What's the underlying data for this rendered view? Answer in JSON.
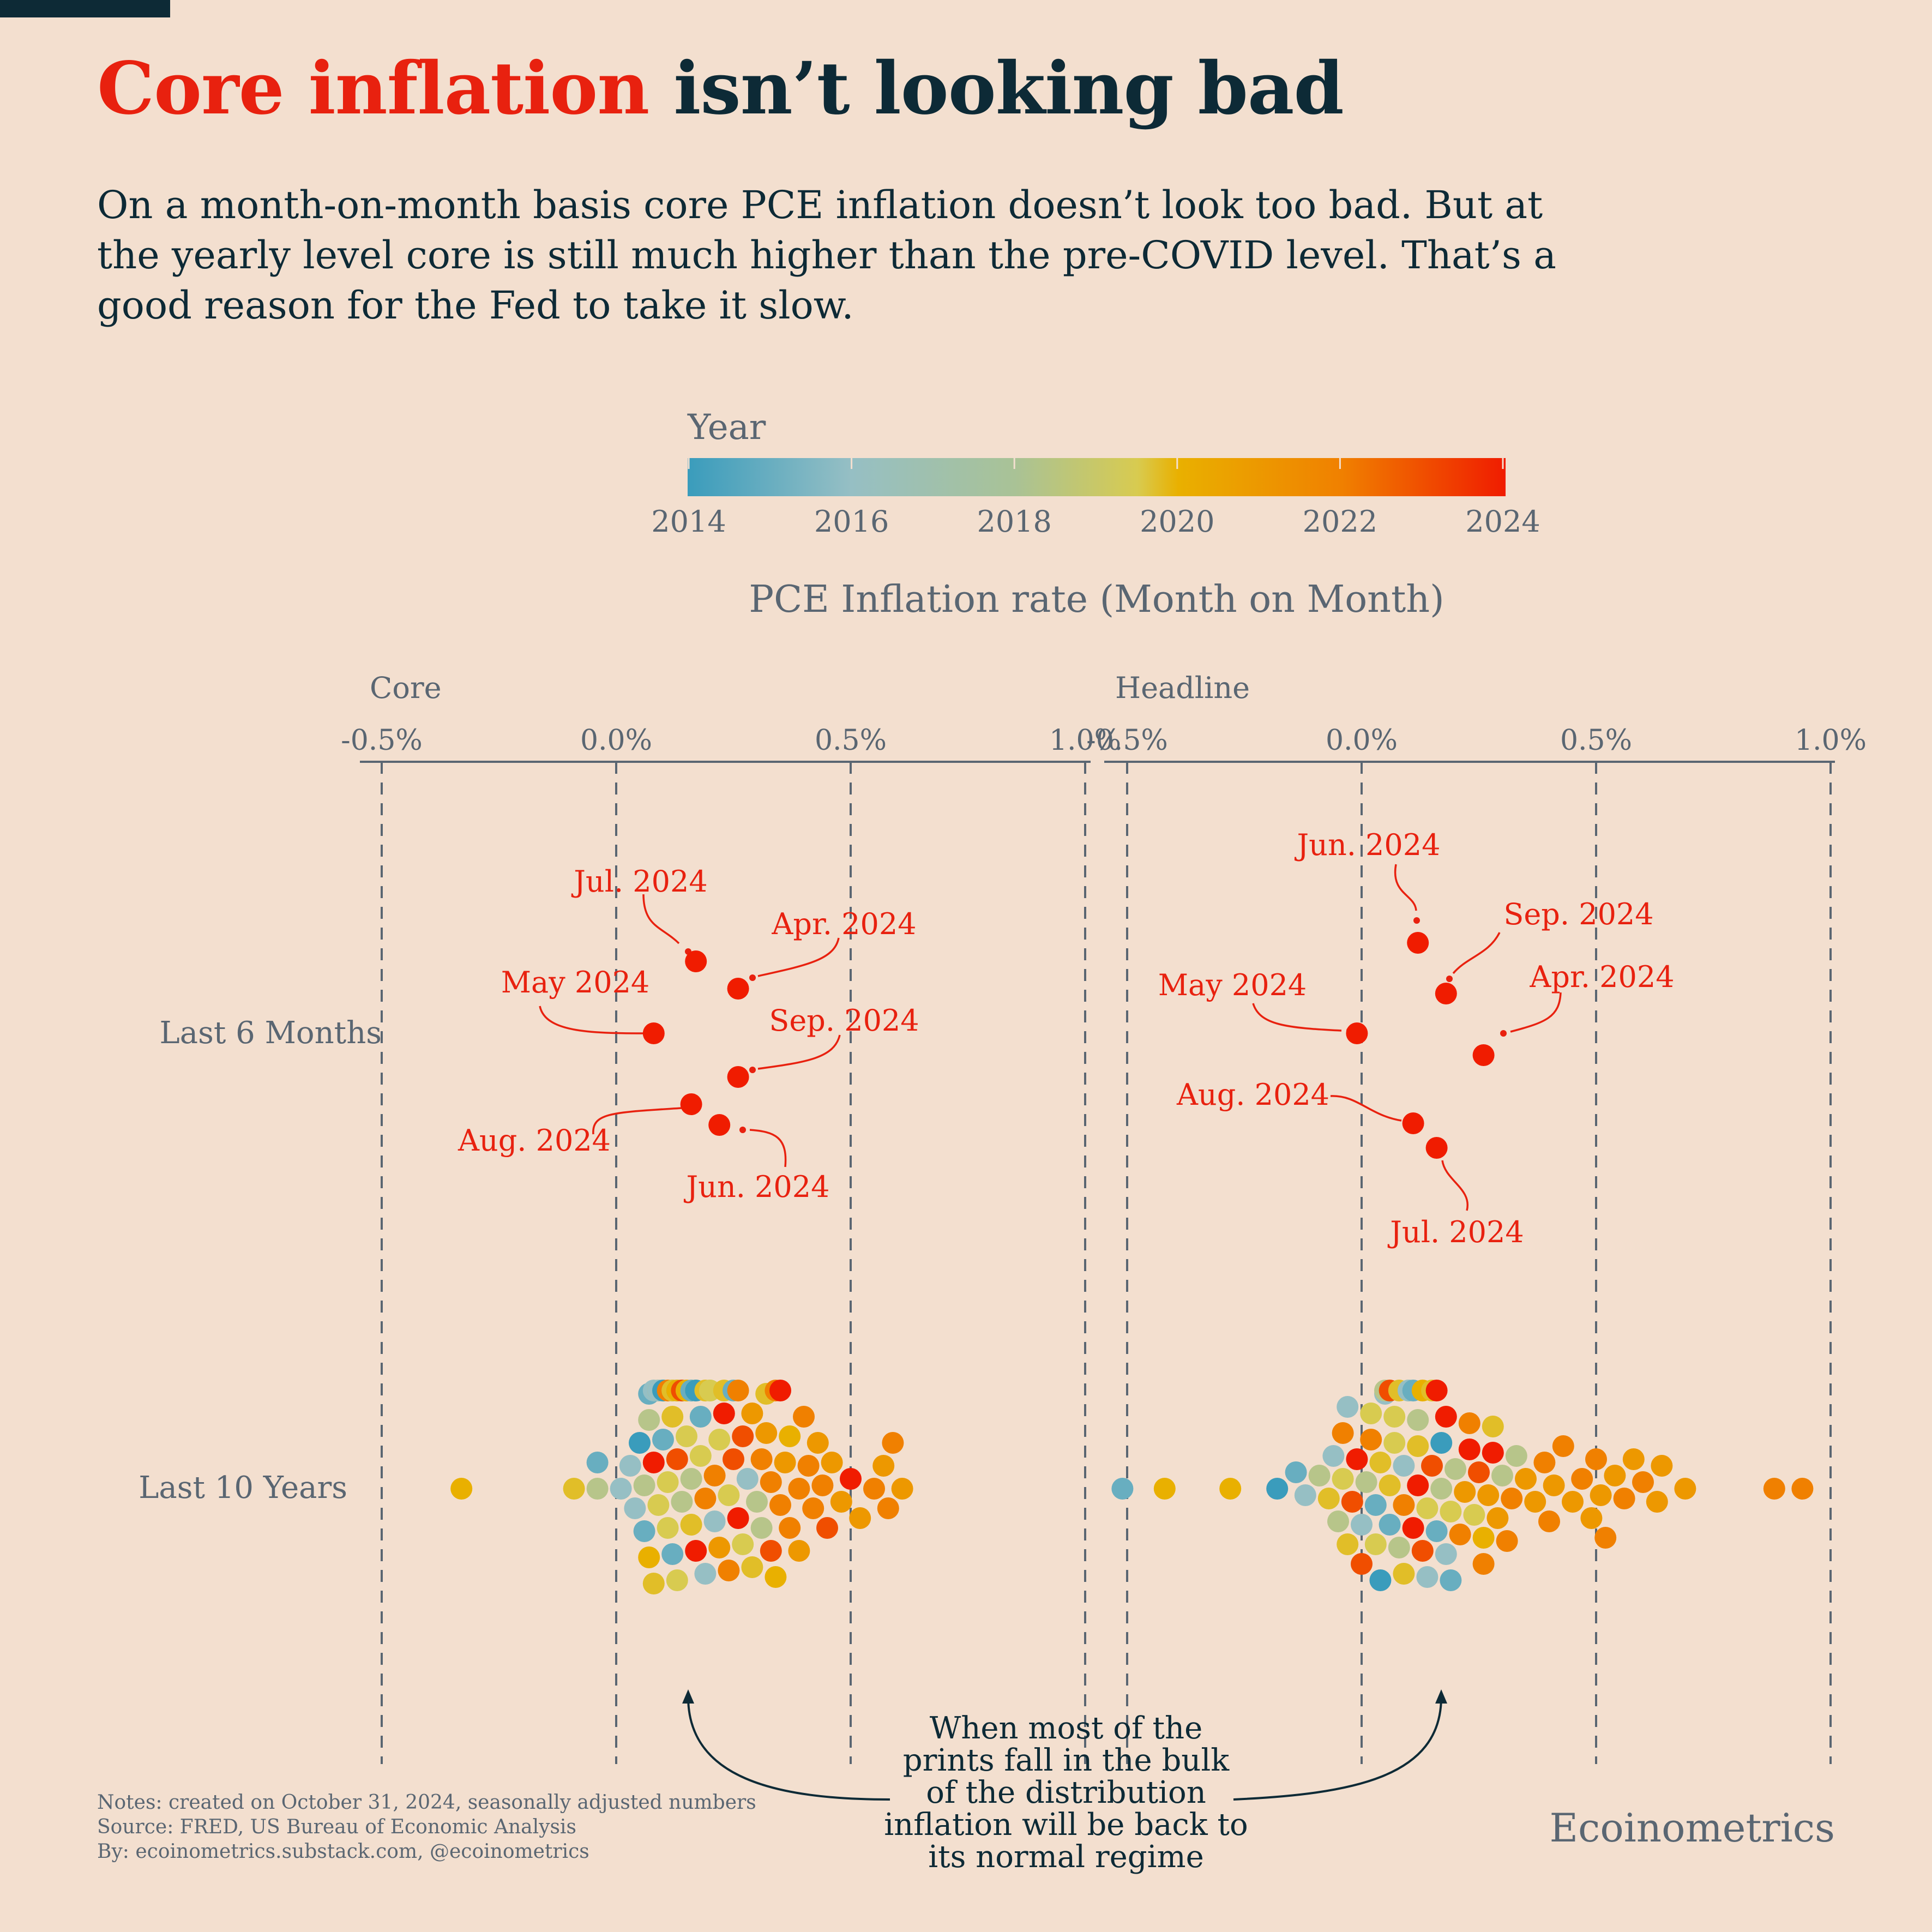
{
  "title": {
    "accent": "Core inflation",
    "rest": " isn’t looking bad"
  },
  "subtitle": "On a month-on-month basis core PCE inflation doesn’t look too bad. But at the yearly level core is still much higher than the pre-COVID level. That’s a good reason for the Fed to take it slow.",
  "notes": {
    "line1": "Notes: created on October 31, 2024, seasonally adjusted numbers",
    "line2": "Source: FRED, US Bureau of Economic Analysis",
    "line3": "By: ecoinometrics.substack.com, @ecoinometrics"
  },
  "brand": "Ecoinometrics",
  "callout": "When most of the prints fall in the bulk of the distribution inflation will be back to its normal regime",
  "colors": {
    "background": "#f3dfcf",
    "dark": "#0d2a36",
    "accent": "#e8210f",
    "gray": "#5a6672",
    "scale": [
      "#3a9cbc",
      "#96bfc4",
      "#d8cb50",
      "#e9b000",
      "#f08000",
      "#f01c00"
    ]
  },
  "chart_data": {
    "type": "scatter",
    "subtype": "beeswarm",
    "title": "PCE Inflation rate (Month on Month)",
    "legend": {
      "title": "Year",
      "min": 2014,
      "max": 2024,
      "ticks": [
        "2014",
        "2016",
        "2018",
        "2020",
        "2022",
        "2024"
      ]
    },
    "xlim": [
      -0.5,
      1.0
    ],
    "tick_labels": [
      "-0.5%",
      "0.0%",
      "0.5%",
      "1.0%"
    ],
    "rows": [
      "Last 6 Months",
      "Last 10 Years"
    ],
    "panels": [
      {
        "name": "Core",
        "recent": [
          {
            "label": "Jul. 2024",
            "value": 0.17
          },
          {
            "label": "Apr. 2024",
            "value": 0.26
          },
          {
            "label": "May 2024",
            "value": 0.08
          },
          {
            "label": "Sep. 2024",
            "value": 0.26
          },
          {
            "label": "Aug. 2024",
            "value": 0.16
          },
          {
            "label": "Jun. 2024",
            "value": 0.22
          }
        ],
        "history": [
          [
            -0.33,
            2020
          ],
          [
            -0.09,
            2019
          ],
          [
            -0.04,
            2017
          ],
          [
            -0.04,
            2015
          ],
          [
            0.01,
            2016
          ],
          [
            0.03,
            2016
          ],
          [
            0.04,
            2016
          ],
          [
            0.05,
            2014
          ],
          [
            0.06,
            2017
          ],
          [
            0.06,
            2015
          ],
          [
            0.07,
            2017
          ],
          [
            0.07,
            2020
          ],
          [
            0.07,
            2015
          ],
          [
            0.08,
            2024
          ],
          [
            0.08,
            2019
          ],
          [
            0.08,
            2016
          ],
          [
            0.09,
            2018
          ],
          [
            0.09,
            2019
          ],
          [
            0.09,
            2016
          ],
          [
            0.1,
            2015
          ],
          [
            0.1,
            2017
          ],
          [
            0.1,
            2014
          ],
          [
            0.11,
            2018
          ],
          [
            0.11,
            2018
          ],
          [
            0.11,
            2022
          ],
          [
            0.12,
            2015
          ],
          [
            0.12,
            2019
          ],
          [
            0.12,
            2016
          ],
          [
            0.12,
            2019
          ],
          [
            0.13,
            2023
          ],
          [
            0.13,
            2018
          ],
          [
            0.13,
            2015
          ],
          [
            0.13,
            2020
          ],
          [
            0.14,
            2017
          ],
          [
            0.14,
            2015
          ],
          [
            0.14,
            2023
          ],
          [
            0.15,
            2018
          ],
          [
            0.15,
            2016
          ],
          [
            0.15,
            2020
          ],
          [
            0.16,
            2017
          ],
          [
            0.16,
            2019
          ],
          [
            0.16,
            2015
          ],
          [
            0.17,
            2024
          ],
          [
            0.17,
            2018
          ],
          [
            0.17,
            2014
          ],
          [
            0.18,
            2018
          ],
          [
            0.18,
            2015
          ],
          [
            0.19,
            2022
          ],
          [
            0.19,
            2016
          ],
          [
            0.19,
            2019
          ],
          [
            0.2,
            2017
          ],
          [
            0.2,
            2018
          ],
          [
            0.21,
            2022
          ],
          [
            0.21,
            2016
          ],
          [
            0.22,
            2018
          ],
          [
            0.22,
            2021
          ],
          [
            0.23,
            2024
          ],
          [
            0.23,
            2019
          ],
          [
            0.24,
            2018
          ],
          [
            0.24,
            2022
          ],
          [
            0.25,
            2023
          ],
          [
            0.25,
            2015
          ],
          [
            0.26,
            2024
          ],
          [
            0.26,
            2022
          ],
          [
            0.27,
            2023
          ],
          [
            0.27,
            2018
          ],
          [
            0.28,
            2016
          ],
          [
            0.29,
            2021
          ],
          [
            0.29,
            2019
          ],
          [
            0.3,
            2017
          ],
          [
            0.31,
            2022
          ],
          [
            0.31,
            2017
          ],
          [
            0.32,
            2021
          ],
          [
            0.32,
            2019
          ],
          [
            0.33,
            2022
          ],
          [
            0.33,
            2023
          ],
          [
            0.34,
            2020
          ],
          [
            0.34,
            2022
          ],
          [
            0.35,
            2022
          ],
          [
            0.35,
            2024
          ],
          [
            0.36,
            2021
          ],
          [
            0.37,
            2022
          ],
          [
            0.37,
            2020
          ],
          [
            0.39,
            2022
          ],
          [
            0.39,
            2021
          ],
          [
            0.4,
            2022
          ],
          [
            0.41,
            2022
          ],
          [
            0.42,
            2022
          ],
          [
            0.43,
            2021
          ],
          [
            0.44,
            2022
          ],
          [
            0.45,
            2023
          ],
          [
            0.46,
            2021
          ],
          [
            0.48,
            2021
          ],
          [
            0.5,
            2024
          ],
          [
            0.52,
            2021
          ],
          [
            0.55,
            2022
          ],
          [
            0.57,
            2021
          ],
          [
            0.58,
            2022
          ],
          [
            0.59,
            2022
          ],
          [
            0.61,
            2021
          ]
        ]
      },
      {
        "name": "Headline",
        "recent": [
          {
            "label": "Jun. 2024",
            "value": 0.12
          },
          {
            "label": "Sep. 2024",
            "value": 0.18
          },
          {
            "label": "May 2024",
            "value": -0.01
          },
          {
            "label": "Apr. 2024",
            "value": 0.26
          },
          {
            "label": "Aug. 2024",
            "value": 0.11
          },
          {
            "label": "Jul. 2024",
            "value": 0.16
          }
        ],
        "history": [
          [
            -0.51,
            2015
          ],
          [
            -0.42,
            2020
          ],
          [
            -0.28,
            2020
          ],
          [
            -0.18,
            2014
          ],
          [
            -0.14,
            2015
          ],
          [
            -0.12,
            2016
          ],
          [
            -0.09,
            2017
          ],
          [
            -0.07,
            2019
          ],
          [
            -0.06,
            2016
          ],
          [
            -0.05,
            2017
          ],
          [
            -0.04,
            2018
          ],
          [
            -0.04,
            2022
          ],
          [
            -0.03,
            2019
          ],
          [
            -0.03,
            2016
          ],
          [
            -0.02,
            2023
          ],
          [
            -0.01,
            2024
          ],
          [
            0.0,
            2016
          ],
          [
            0.0,
            2023
          ],
          [
            0.01,
            2017
          ],
          [
            0.02,
            2022
          ],
          [
            0.02,
            2018
          ],
          [
            0.03,
            2015
          ],
          [
            0.03,
            2018
          ],
          [
            0.04,
            2019
          ],
          [
            0.04,
            2014
          ],
          [
            0.05,
            2016
          ],
          [
            0.05,
            2017
          ],
          [
            0.06,
            2019
          ],
          [
            0.06,
            2015
          ],
          [
            0.06,
            2023
          ],
          [
            0.07,
            2018
          ],
          [
            0.07,
            2018
          ],
          [
            0.08,
            2017
          ],
          [
            0.08,
            2019
          ],
          [
            0.09,
            2022
          ],
          [
            0.09,
            2016
          ],
          [
            0.09,
            2019
          ],
          [
            0.1,
            2017
          ],
          [
            0.1,
            2016
          ],
          [
            0.11,
            2024
          ],
          [
            0.11,
            2015
          ],
          [
            0.12,
            2024
          ],
          [
            0.12,
            2019
          ],
          [
            0.12,
            2017
          ],
          [
            0.13,
            2023
          ],
          [
            0.13,
            2020
          ],
          [
            0.14,
            2018
          ],
          [
            0.14,
            2016
          ],
          [
            0.15,
            2023
          ],
          [
            0.15,
            2019
          ],
          [
            0.16,
            2015
          ],
          [
            0.16,
            2024
          ],
          [
            0.17,
            2017
          ],
          [
            0.17,
            2014
          ],
          [
            0.18,
            2016
          ],
          [
            0.18,
            2024
          ],
          [
            0.19,
            2018
          ],
          [
            0.19,
            2015
          ],
          [
            0.2,
            2017
          ],
          [
            0.21,
            2022
          ],
          [
            0.22,
            2021
          ],
          [
            0.23,
            2024
          ],
          [
            0.23,
            2022
          ],
          [
            0.24,
            2018
          ],
          [
            0.25,
            2023
          ],
          [
            0.26,
            2020
          ],
          [
            0.26,
            2022
          ],
          [
            0.27,
            2021
          ],
          [
            0.28,
            2024
          ],
          [
            0.28,
            2019
          ],
          [
            0.29,
            2021
          ],
          [
            0.3,
            2017
          ],
          [
            0.31,
            2022
          ],
          [
            0.32,
            2022
          ],
          [
            0.33,
            2017
          ],
          [
            0.35,
            2021
          ],
          [
            0.37,
            2021
          ],
          [
            0.39,
            2022
          ],
          [
            0.4,
            2022
          ],
          [
            0.41,
            2021
          ],
          [
            0.43,
            2022
          ],
          [
            0.45,
            2021
          ],
          [
            0.47,
            2022
          ],
          [
            0.49,
            2021
          ],
          [
            0.5,
            2022
          ],
          [
            0.51,
            2021
          ],
          [
            0.52,
            2022
          ],
          [
            0.54,
            2021
          ],
          [
            0.56,
            2022
          ],
          [
            0.58,
            2021
          ],
          [
            0.6,
            2022
          ],
          [
            0.63,
            2021
          ],
          [
            0.64,
            2021
          ],
          [
            0.69,
            2021
          ],
          [
            0.88,
            2022
          ],
          [
            0.94,
            2022
          ]
        ]
      }
    ]
  }
}
